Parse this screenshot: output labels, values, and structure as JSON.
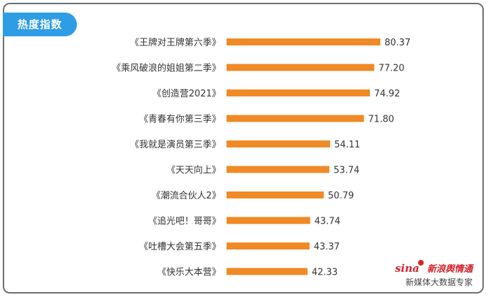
{
  "header": {
    "tag_label": "热度指数"
  },
  "brand": {
    "logo_latin": "sina",
    "logo_cn": "新浪舆情通",
    "subtitle": "新媒体大数据专家"
  },
  "colors": {
    "bar": "#ef8a26",
    "tag_bg": "#2e9de4",
    "logo": "#d7212a"
  },
  "chart_data": {
    "type": "bar",
    "orientation": "horizontal",
    "categories": [
      "《王牌对王牌第六季》",
      "《乘风破浪的姐姐第二季》",
      "《创造营2021》",
      "《青春有你第三季》",
      "《我就是演员第三季》",
      "《天天向上》",
      "《潮流合伙人2》",
      "《追光吧！哥哥》",
      "《吐槽大会第五季》",
      "《快乐大本营》"
    ],
    "values": [
      80.37,
      77.2,
      74.92,
      71.8,
      54.11,
      53.74,
      50.79,
      43.74,
      43.37,
      42.33
    ],
    "value_labels": [
      "80.37",
      "77.20",
      "74.92",
      "71.80",
      "54.11",
      "53.74",
      "50.79",
      "43.74",
      "43.37",
      "42.33"
    ],
    "xlim": [
      0,
      80.37
    ],
    "title": "",
    "xlabel": "",
    "ylabel": "",
    "grid": false,
    "legend": "none"
  }
}
